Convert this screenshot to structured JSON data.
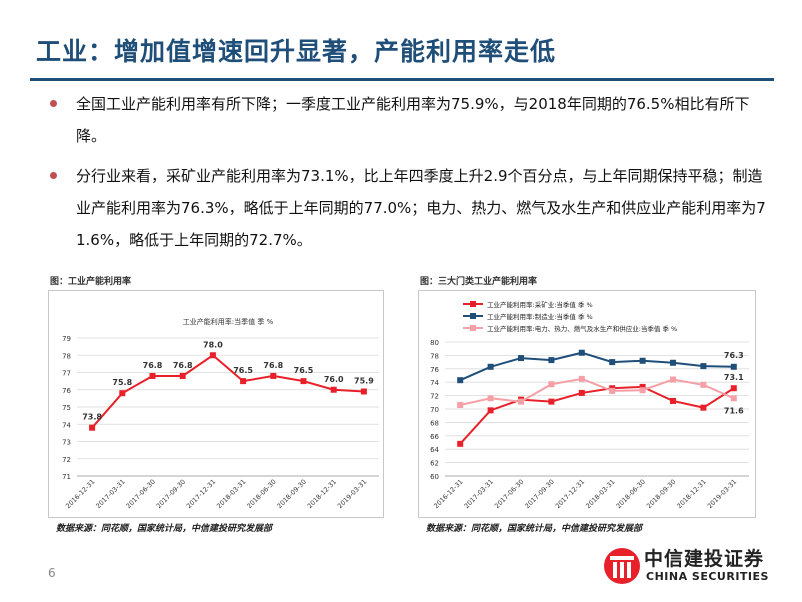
{
  "slide": {
    "title": "工业：增加值增速回升显著，产能利用率走低",
    "page_number": "6",
    "bullets": [
      "全国工业产能利用率有所下降；一季度工业产能利用率为75.9%，与2018年同期的76.5%相比有所下降。",
      "分行业来看，采矿业产能利用率为73.1%，比上年四季度上升2.9个百分点，与上年同期保持平稳；制造业产能利用率为76.3%，略低于上年同期的77.0%；电力、热力、燃气及水生产和供应业产能利用率为71.6%，略低于上年同期的72.7%。"
    ],
    "logo": {
      "cn": "中信建投证券",
      "en": "CHINA SECURITIES"
    }
  },
  "colors": {
    "title": "#1f4e79",
    "bullet": "#c0504d",
    "red": "#e8202a",
    "navy": "#1f4e79",
    "pink": "#f4a0a6"
  },
  "chart_data": [
    {
      "type": "line",
      "caption": "图：工业产能利用率",
      "title": "工业产能利用率:当季值  季 %",
      "source": "数据来源：同花顺，国家统计局，中信建投研究发展部",
      "x": [
        "2016-12-31",
        "2017-03-31",
        "2017-06-30",
        "2017-09-30",
        "2017-12-31",
        "2018-03-31",
        "2018-06-30",
        "2018-09-30",
        "2018-12-31",
        "2019-03-31"
      ],
      "series": [
        {
          "name": "工业产能利用率:当季值  季 %",
          "color": "#e8202a",
          "values": [
            73.8,
            75.8,
            76.8,
            76.8,
            78.0,
            76.5,
            76.8,
            76.5,
            76.0,
            75.9
          ],
          "labels": [
            "73.8",
            "75.8",
            "76.8",
            "76.8",
            "78.0",
            "76.5",
            "76.8",
            "76.5",
            "76.0",
            "75.9"
          ]
        }
      ],
      "ylim": [
        71,
        79
      ],
      "yticks": [
        "71",
        "72",
        "73",
        "74",
        "75",
        "76",
        "77",
        "78",
        "79"
      ],
      "grid": true
    },
    {
      "type": "line",
      "caption": "图：三大门类工业产能利用率",
      "source": "数据来源：同花顺，国家统计局，中信建投研究发展部",
      "legend_position": "top",
      "x": [
        "2016-12-31",
        "2017-03-31",
        "2017-06-30",
        "2017-09-30",
        "2017-12-31",
        "2018-03-31",
        "2018-06-30",
        "2018-09-30",
        "2018-12-31",
        "2019-03-31"
      ],
      "series": [
        {
          "name": "工业产能利用率:采矿业:当季值  季 %",
          "color": "#e8202a",
          "values": [
            64.8,
            69.8,
            71.4,
            71.1,
            72.4,
            73.1,
            73.3,
            71.2,
            70.2,
            73.1
          ],
          "end_label": "73.1"
        },
        {
          "name": "工业产能利用率:制造业:当季值  季 %",
          "color": "#1f4e79",
          "values": [
            74.3,
            76.3,
            77.6,
            77.3,
            78.4,
            77.0,
            77.2,
            76.9,
            76.4,
            76.3
          ],
          "end_label": "76.3"
        },
        {
          "name": "工业产能利用率:电力、热力、燃气及水生产和供应业:当季值  季 %",
          "color": "#f4a0a6",
          "values": [
            70.6,
            71.6,
            71.1,
            73.7,
            74.5,
            72.7,
            72.8,
            74.4,
            73.6,
            71.6
          ],
          "end_label": "71.6"
        }
      ],
      "ylim": [
        60,
        80
      ],
      "yticks": [
        "60",
        "62",
        "64",
        "66",
        "68",
        "70",
        "72",
        "74",
        "76",
        "78",
        "80"
      ],
      "grid": true
    }
  ]
}
